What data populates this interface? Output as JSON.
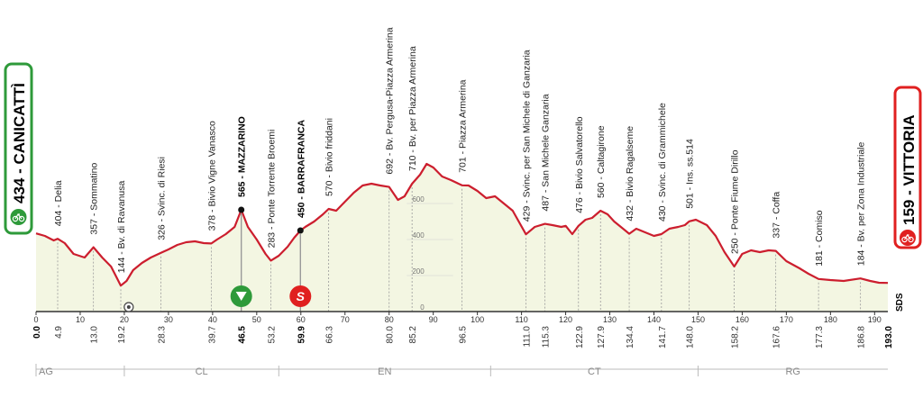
{
  "chart_data": {
    "type": "area",
    "x_range": [
      0,
      193
    ],
    "y_range": [
      0,
      900
    ],
    "x_ticks": [
      0,
      10,
      20,
      30,
      40,
      50,
      60,
      70,
      80,
      90,
      100,
      110,
      120,
      130,
      140,
      150,
      160,
      170,
      180,
      190
    ],
    "x_tick_labels": [
      "0",
      "10",
      "20",
      "30",
      "40",
      "50",
      "60",
      "70",
      "80",
      "90",
      "100",
      "110",
      "120",
      "130",
      "140",
      "150",
      "160",
      "170",
      "180",
      "190"
    ],
    "y_ticks": [
      0,
      200,
      400,
      600
    ],
    "y_tick_labels": [
      "0",
      "200",
      "400",
      "600"
    ],
    "profile": [
      {
        "km": 0,
        "alt": 434
      },
      {
        "km": 2,
        "alt": 420
      },
      {
        "km": 4,
        "alt": 395
      },
      {
        "km": 4.9,
        "alt": 404
      },
      {
        "km": 6.5,
        "alt": 380
      },
      {
        "km": 8.5,
        "alt": 320
      },
      {
        "km": 11,
        "alt": 300
      },
      {
        "km": 13,
        "alt": 357
      },
      {
        "km": 15,
        "alt": 300
      },
      {
        "km": 17,
        "alt": 250
      },
      {
        "km": 19.2,
        "alt": 144
      },
      {
        "km": 20.5,
        "alt": 170
      },
      {
        "km": 22,
        "alt": 230
      },
      {
        "km": 24,
        "alt": 270
      },
      {
        "km": 26,
        "alt": 300
      },
      {
        "km": 28.3,
        "alt": 326
      },
      {
        "km": 30,
        "alt": 345
      },
      {
        "km": 32,
        "alt": 370
      },
      {
        "km": 34,
        "alt": 385
      },
      {
        "km": 36,
        "alt": 390
      },
      {
        "km": 38,
        "alt": 380
      },
      {
        "km": 39.7,
        "alt": 378
      },
      {
        "km": 41,
        "alt": 400
      },
      {
        "km": 43,
        "alt": 430
      },
      {
        "km": 45,
        "alt": 470
      },
      {
        "km": 46.5,
        "alt": 565
      },
      {
        "km": 48,
        "alt": 470
      },
      {
        "km": 50,
        "alt": 400
      },
      {
        "km": 52,
        "alt": 320
      },
      {
        "km": 53.2,
        "alt": 283
      },
      {
        "km": 55,
        "alt": 310
      },
      {
        "km": 57,
        "alt": 360
      },
      {
        "km": 58.5,
        "alt": 410
      },
      {
        "km": 59.9,
        "alt": 450
      },
      {
        "km": 61,
        "alt": 470
      },
      {
        "km": 63,
        "alt": 500
      },
      {
        "km": 65,
        "alt": 540
      },
      {
        "km": 66.3,
        "alt": 570
      },
      {
        "km": 68,
        "alt": 560
      },
      {
        "km": 70,
        "alt": 610
      },
      {
        "km": 72,
        "alt": 660
      },
      {
        "km": 74,
        "alt": 700
      },
      {
        "km": 76,
        "alt": 710
      },
      {
        "km": 78,
        "alt": 700
      },
      {
        "km": 80,
        "alt": 692
      },
      {
        "km": 82,
        "alt": 620
      },
      {
        "km": 83.5,
        "alt": 640
      },
      {
        "km": 85.2,
        "alt": 710
      },
      {
        "km": 87,
        "alt": 760
      },
      {
        "km": 88.5,
        "alt": 820
      },
      {
        "km": 90,
        "alt": 800
      },
      {
        "km": 92,
        "alt": 750
      },
      {
        "km": 94,
        "alt": 730
      },
      {
        "km": 96.5,
        "alt": 701
      },
      {
        "km": 98,
        "alt": 700
      },
      {
        "km": 100,
        "alt": 670
      },
      {
        "km": 102,
        "alt": 630
      },
      {
        "km": 104,
        "alt": 640
      },
      {
        "km": 106,
        "alt": 600
      },
      {
        "km": 108,
        "alt": 560
      },
      {
        "km": 111,
        "alt": 429
      },
      {
        "km": 113,
        "alt": 470
      },
      {
        "km": 115.3,
        "alt": 487
      },
      {
        "km": 117,
        "alt": 480
      },
      {
        "km": 119,
        "alt": 470
      },
      {
        "km": 120,
        "alt": 476
      },
      {
        "km": 121.5,
        "alt": 430
      },
      {
        "km": 122.9,
        "alt": 476
      },
      {
        "km": 124.5,
        "alt": 510
      },
      {
        "km": 126,
        "alt": 520
      },
      {
        "km": 127.9,
        "alt": 560
      },
      {
        "km": 129.5,
        "alt": 540
      },
      {
        "km": 131,
        "alt": 500
      },
      {
        "km": 132.5,
        "alt": 470
      },
      {
        "km": 134.4,
        "alt": 432
      },
      {
        "km": 136,
        "alt": 460
      },
      {
        "km": 138,
        "alt": 440
      },
      {
        "km": 140,
        "alt": 420
      },
      {
        "km": 141.7,
        "alt": 430
      },
      {
        "km": 143.5,
        "alt": 460
      },
      {
        "km": 145.5,
        "alt": 470
      },
      {
        "km": 147,
        "alt": 480
      },
      {
        "km": 148,
        "alt": 501
      },
      {
        "km": 149.5,
        "alt": 510
      },
      {
        "km": 152,
        "alt": 480
      },
      {
        "km": 154,
        "alt": 420
      },
      {
        "km": 156,
        "alt": 330
      },
      {
        "km": 158.2,
        "alt": 250
      },
      {
        "km": 160,
        "alt": 320
      },
      {
        "km": 162,
        "alt": 340
      },
      {
        "km": 164,
        "alt": 330
      },
      {
        "km": 166,
        "alt": 340
      },
      {
        "km": 167.6,
        "alt": 337
      },
      {
        "km": 170,
        "alt": 280
      },
      {
        "km": 173,
        "alt": 240
      },
      {
        "km": 175,
        "alt": 210
      },
      {
        "km": 177.3,
        "alt": 181
      },
      {
        "km": 180,
        "alt": 175
      },
      {
        "km": 183,
        "alt": 170
      },
      {
        "km": 186.8,
        "alt": 184
      },
      {
        "km": 189,
        "alt": 170
      },
      {
        "km": 191,
        "alt": 160
      },
      {
        "km": 193,
        "alt": 159
      }
    ],
    "waypoints": [
      {
        "km": 4.9,
        "label": "404 - Delia"
      },
      {
        "km": 13.0,
        "label": "357 - Sommatino"
      },
      {
        "km": 19.2,
        "label": "144 - Bv. di Ravanusa"
      },
      {
        "km": 28.3,
        "label": "326 - Svinc. di Riesi"
      },
      {
        "km": 39.7,
        "label": "378 - Bivio Vigne Vanasco"
      },
      {
        "km": 46.5,
        "label": "565 - MAZZARINO",
        "bold": true
      },
      {
        "km": 53.2,
        "label": "283 - Ponte Torrente Broemi"
      },
      {
        "km": 59.9,
        "label": "450 - BARRAFRANCA",
        "bold": true
      },
      {
        "km": 66.3,
        "label": "570 - Bivio friddani"
      },
      {
        "km": 80.0,
        "label": "692 - Bv. Pergusa-Piazza Armerina"
      },
      {
        "km": 85.2,
        "label": "710 - Bv. per Piazza Armerina"
      },
      {
        "km": 96.5,
        "label": "701 - Piazza Armerina"
      },
      {
        "km": 111.0,
        "label": "429 - Svinc. per San Michele di Ganzaria"
      },
      {
        "km": 115.3,
        "label": "487 - San Michele Ganzaria"
      },
      {
        "km": 122.9,
        "label": "476 - Bivio Salvatorello"
      },
      {
        "km": 127.9,
        "label": "560 - Caltagirone"
      },
      {
        "km": 134.4,
        "label": "432 - Bivio Ragalseme"
      },
      {
        "km": 141.7,
        "label": "430 - Svinc. di Grammichele"
      },
      {
        "km": 148.0,
        "label": "501 - Ins. ss.514"
      },
      {
        "km": 158.2,
        "label": "250 - Ponte Fiume Dirillo"
      },
      {
        "km": 167.6,
        "label": "337 - Coffa"
      },
      {
        "km": 177.3,
        "label": "181 - Comiso"
      },
      {
        "km": 186.8,
        "label": "184 - Bv. per Zona Industriale"
      }
    ],
    "km_labels": [
      {
        "km": 0,
        "label": "0.0",
        "bold": true
      },
      {
        "km": 4.9,
        "label": "4.9"
      },
      {
        "km": 13.0,
        "label": "13.0"
      },
      {
        "km": 19.2,
        "label": "19.2"
      },
      {
        "km": 28.3,
        "label": "28.3"
      },
      {
        "km": 39.7,
        "label": "39.7"
      },
      {
        "km": 46.5,
        "label": "46.5",
        "bold": true
      },
      {
        "km": 53.2,
        "label": "53.2"
      },
      {
        "km": 59.9,
        "label": "59.9",
        "bold": true
      },
      {
        "km": 66.3,
        "label": "66.3"
      },
      {
        "km": 80.0,
        "label": "80.0"
      },
      {
        "km": 85.2,
        "label": "85.2"
      },
      {
        "km": 96.5,
        "label": "96.5"
      },
      {
        "km": 111.0,
        "label": "111.0"
      },
      {
        "km": 115.3,
        "label": "115.3"
      },
      {
        "km": 122.9,
        "label": "122.9"
      },
      {
        "km": 127.9,
        "label": "127.9"
      },
      {
        "km": 134.4,
        "label": "134.4"
      },
      {
        "km": 141.7,
        "label": "141.7"
      },
      {
        "km": 148.0,
        "label": "148.0"
      },
      {
        "km": 158.2,
        "label": "158.2"
      },
      {
        "km": 167.6,
        "label": "167.6"
      },
      {
        "km": 177.3,
        "label": "177.3"
      },
      {
        "km": 186.8,
        "label": "186.8"
      },
      {
        "km": 193,
        "label": "193.0",
        "bold": true
      }
    ],
    "provinces": [
      {
        "label": "AG",
        "from_km": 0,
        "to_km": 20
      },
      {
        "label": "CL",
        "from_km": 20,
        "to_km": 55
      },
      {
        "label": "EN",
        "from_km": 55,
        "to_km": 103
      },
      {
        "label": "CT",
        "from_km": 103,
        "to_km": 150
      },
      {
        "label": "RG",
        "from_km": 150,
        "to_km": 193
      }
    ],
    "start": {
      "label": "434 - CANICATTÌ",
      "color": "#2e9a3a"
    },
    "finish": {
      "label": "159 - VITTORIA",
      "color": "#e02020"
    },
    "intermediate_sprint": {
      "km": 46.5,
      "color": "#2e9a3a"
    },
    "climb_marker": {
      "km": 59.9,
      "label": "S",
      "color": "#e02020"
    },
    "feed_zone_km": 21,
    "sds_label": "SDS",
    "colors": {
      "fill": "#f3f6e2",
      "line": "#cc1e2e",
      "grid": "#cfcfcf"
    }
  }
}
